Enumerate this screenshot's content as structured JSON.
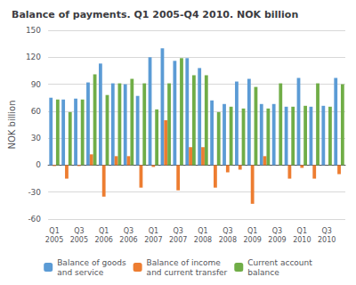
{
  "chart_data": {
    "type": "bar",
    "title": "Balance of payments. Q1 2005-Q4 2010. NOK billion",
    "ylabel": "NOK billion",
    "categories": [
      "Q1\n2005",
      null,
      "Q3\n2005",
      null,
      "Q1\n2006",
      null,
      "Q3\n2006",
      null,
      "Q1\n2007",
      null,
      "Q3\n2007",
      null,
      "Q1\n2008",
      null,
      "Q3\n2008",
      null,
      "Q1\n2009",
      null,
      "Q3\n2009",
      null,
      "Q1\n2010",
      null,
      "Q3\n2010",
      null
    ],
    "series": [
      {
        "name": "Balance of goods\nand service",
        "color": "#5b9bd5",
        "values": [
          75,
          73,
          74,
          92,
          113,
          91,
          90,
          77,
          120,
          130,
          116,
          119,
          108,
          72,
          68,
          93,
          96,
          68,
          68,
          65,
          97,
          65,
          66,
          97
        ]
      },
      {
        "name": "Balance of income\nand current transfer",
        "color": "#ed7d31",
        "values": [
          -1,
          -15,
          -1,
          12,
          -35,
          10,
          10,
          -25,
          -2,
          50,
          -28,
          20,
          20,
          -25,
          -8,
          -5,
          -43,
          10,
          0,
          -15,
          -3,
          -15,
          0,
          -10
        ]
      },
      {
        "name": "Current account\nbalance",
        "color": "#70ad47",
        "values": [
          73,
          59,
          73,
          101,
          78,
          91,
          96,
          91,
          62,
          91,
          119,
          100,
          100,
          59,
          65,
          63,
          87,
          63,
          91,
          65,
          66,
          91,
          65,
          90
        ]
      }
    ],
    "ylim": [
      -60,
      150
    ],
    "yticks": [
      -60,
      -30,
      0,
      30,
      60,
      90,
      120,
      150
    ],
    "grid": true,
    "legend": "bottom"
  }
}
